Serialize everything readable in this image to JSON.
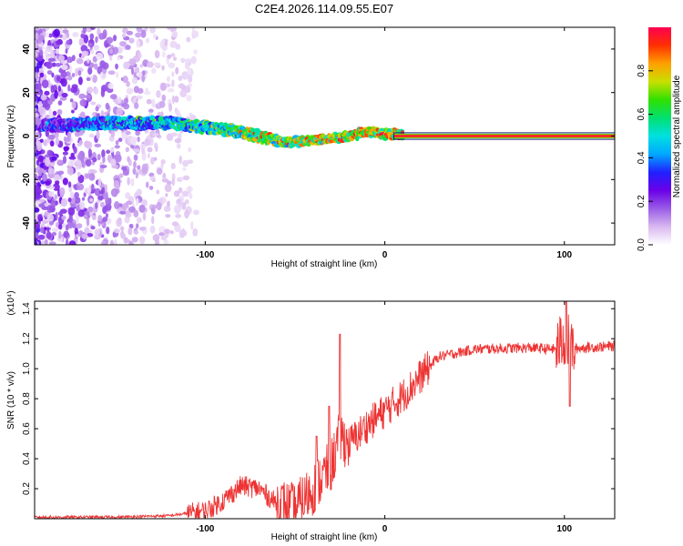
{
  "title": "C2E4.2026.114.09.55.E07",
  "chart_data": [
    {
      "type": "heatmap",
      "description_id": "spectrogram",
      "xlabel": "Height of straight line (km)",
      "ylabel": "Frequency (Hz)",
      "xlim": [
        -195,
        128
      ],
      "ylim": [
        -50,
        50
      ],
      "x_ticks": [
        -100,
        0,
        100
      ],
      "y_ticks": [
        -40,
        -20,
        0,
        20,
        40
      ],
      "colorbar": {
        "label": "Normalized spectral amplitude",
        "range": [
          0,
          1
        ],
        "ticks": [
          "0.0",
          "0.2",
          "0.4",
          "0.6",
          "0.8"
        ],
        "colors": [
          "#ffffff",
          "#d9b8f0",
          "#9a5ce6",
          "#6a00e8",
          "#2020ff",
          "#00a8ff",
          "#00e0e0",
          "#00e070",
          "#30e000",
          "#c8e000",
          "#ffa000",
          "#ff3000",
          "#ff0050"
        ]
      },
      "ridge": {
        "x": [
          -190,
          -150,
          -120,
          -100,
          -80,
          -65,
          -55,
          -40,
          -30,
          -20,
          -10,
          0,
          20,
          60,
          100,
          128
        ],
        "frequency": [
          5,
          6,
          6,
          4,
          2,
          -1,
          -3,
          -2,
          -1,
          0,
          2,
          1,
          0,
          0,
          0,
          0
        ]
      }
    },
    {
      "type": "line",
      "description_id": "snr",
      "xlabel": "Height of straight line (km)",
      "ylabel": "SNR (10 * v/v)",
      "y_multiplier": "(x10⁴)",
      "xlim": [
        -195,
        128
      ],
      "ylim": [
        0,
        1.45
      ],
      "x_ticks": [
        -100,
        0,
        100
      ],
      "y_ticks": [
        0.2,
        0.4,
        0.6,
        0.8,
        1.0,
        1.2,
        1.4
      ],
      "color": "#ee3333",
      "series": [
        {
          "name": "SNR",
          "x": [
            -195,
            -150,
            -120,
            -100,
            -90,
            -80,
            -70,
            -60,
            -50,
            -40,
            -30,
            -25,
            -20,
            -10,
            0,
            10,
            20,
            30,
            50,
            80,
            95,
            100,
            105,
            110,
            128
          ],
          "y": [
            0.01,
            0.01,
            0.02,
            0.05,
            0.12,
            0.22,
            0.2,
            0.1,
            0.06,
            0.2,
            0.35,
            0.55,
            0.5,
            0.62,
            0.72,
            0.82,
            0.95,
            1.08,
            1.13,
            1.14,
            1.13,
            1.2,
            1.13,
            1.14,
            1.15
          ]
        }
      ],
      "spikes": [
        {
          "x": -38,
          "y": 0.55
        },
        {
          "x": -31,
          "y": 0.75
        },
        {
          "x": -25,
          "y": 1.23
        },
        {
          "x": 101,
          "y": 1.45
        },
        {
          "x": 103,
          "y": 0.75
        }
      ]
    }
  ]
}
